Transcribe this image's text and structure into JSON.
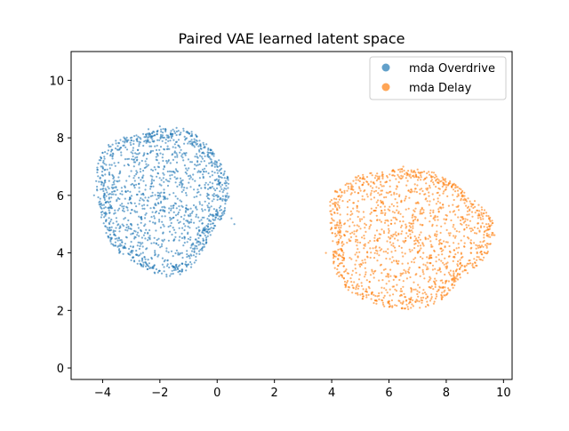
{
  "chart_data": {
    "type": "scatter",
    "title": "Paired VAE learned latent space",
    "xlabel": "",
    "ylabel": "",
    "xlim": [
      -5.1,
      10.3
    ],
    "ylim": [
      -0.4,
      11.0
    ],
    "xticks": [
      -4,
      -2,
      0,
      2,
      4,
      6,
      8,
      10
    ],
    "yticks": [
      0,
      2,
      4,
      6,
      8,
      10
    ],
    "grid": false,
    "legend_position": "top-right",
    "series": [
      {
        "name": "mda Overdrive",
        "color": "#1f77b4",
        "approx_points": 1500,
        "cluster": {
          "center": [
            -1.95,
            5.9
          ],
          "radius_x": 2.3,
          "radius_y": 2.55
        },
        "sample_points": [
          [
            -4.3,
            6.0
          ],
          [
            -4.0,
            7.0
          ],
          [
            -3.5,
            4.5
          ],
          [
            -3.0,
            7.5
          ],
          [
            -2.4,
            8.3
          ],
          [
            -2.0,
            8.4
          ],
          [
            -1.5,
            3.4
          ],
          [
            -1.0,
            3.6
          ],
          [
            -0.5,
            4.2
          ],
          [
            0.0,
            7.0
          ],
          [
            0.3,
            5.8
          ],
          [
            0.5,
            5.2
          ],
          [
            0.6,
            5.0
          ],
          [
            -2.0,
            6.0
          ],
          [
            -3.0,
            5.0
          ]
        ]
      },
      {
        "name": "mda Delay",
        "color": "#ff7f0e",
        "approx_points": 1500,
        "cluster": {
          "center": [
            6.6,
            4.55
          ],
          "radius_x": 2.85,
          "radius_y": 2.45
        },
        "sample_points": [
          [
            3.8,
            4.0
          ],
          [
            4.0,
            5.2
          ],
          [
            4.5,
            2.9
          ],
          [
            5.0,
            6.6
          ],
          [
            5.8,
            2.2
          ],
          [
            6.0,
            2.3
          ],
          [
            6.5,
            7.0
          ],
          [
            7.0,
            6.9
          ],
          [
            7.5,
            6.8
          ],
          [
            8.5,
            3.5
          ],
          [
            9.0,
            5.6
          ],
          [
            9.4,
            5.0
          ],
          [
            6.2,
            5.4
          ],
          [
            7.2,
            4.0
          ]
        ]
      }
    ]
  }
}
